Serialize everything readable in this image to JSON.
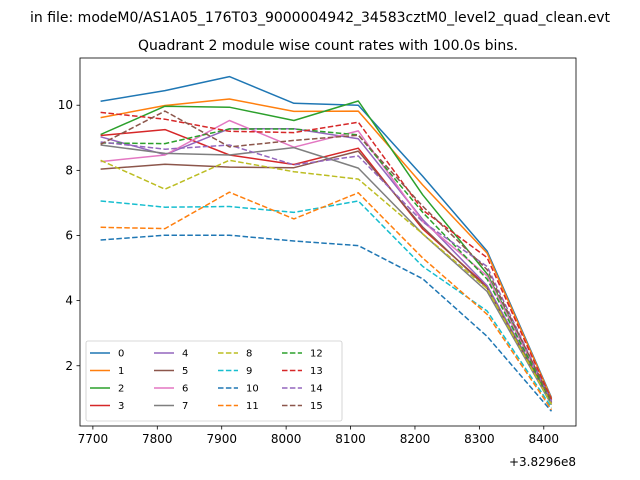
{
  "chart_data": {
    "type": "line",
    "suptitle": "in file: modeM0/AS1A05_176T03_9000004942_34583cztM0_level2_quad_clean.evt",
    "title": "Quadrant 2 module wise count rates with 100.0s bins.",
    "xlabel": "",
    "ylabel": "",
    "x_offset_label": "+3.8296e8",
    "x": [
      7712,
      7812,
      7912,
      8012,
      8112,
      8212,
      8312,
      8412
    ],
    "xlim": [
      7680,
      8450
    ],
    "ylim": [
      0.15,
      11.45
    ],
    "xticks": [
      7700,
      7800,
      7900,
      8000,
      8100,
      8200,
      8300,
      8400
    ],
    "yticks": [
      2,
      4,
      6,
      8,
      10
    ],
    "grid": false,
    "legend_position": "lower-left",
    "legend_columns": 4,
    "series": [
      {
        "name": "0",
        "color": "#1f77b4",
        "linestyle": "solid",
        "values": [
          10.12,
          10.45,
          10.88,
          10.06,
          10.0,
          7.82,
          5.52,
          1.02
        ]
      },
      {
        "name": "1",
        "color": "#ff7f0e",
        "linestyle": "solid",
        "values": [
          9.62,
          9.99,
          10.19,
          9.81,
          9.82,
          7.55,
          5.46,
          0.99
        ]
      },
      {
        "name": "2",
        "color": "#2ca02c",
        "linestyle": "solid",
        "values": [
          9.1,
          9.97,
          9.94,
          9.53,
          10.13,
          7.25,
          4.82,
          0.95
        ]
      },
      {
        "name": "3",
        "color": "#d62728",
        "linestyle": "solid",
        "values": [
          9.07,
          9.25,
          8.47,
          8.18,
          8.68,
          6.2,
          4.44,
          0.86
        ]
      },
      {
        "name": "4",
        "color": "#9467bd",
        "linestyle": "solid",
        "values": [
          9.03,
          8.48,
          9.28,
          9.28,
          8.97,
          6.49,
          4.46,
          0.9
        ]
      },
      {
        "name": "5",
        "color": "#8c564b",
        "linestyle": "solid",
        "values": [
          8.04,
          8.19,
          8.1,
          8.08,
          8.59,
          6.26,
          4.38,
          0.87
        ]
      },
      {
        "name": "6",
        "color": "#e377c2",
        "linestyle": "solid",
        "values": [
          8.27,
          8.47,
          9.53,
          8.71,
          9.21,
          6.43,
          4.76,
          0.92
        ]
      },
      {
        "name": "7",
        "color": "#7f7f7f",
        "linestyle": "solid",
        "values": [
          8.78,
          8.52,
          8.47,
          8.7,
          8.07,
          6.05,
          4.28,
          0.8
        ]
      },
      {
        "name": "8",
        "color": "#bcbd22",
        "linestyle": "dashed",
        "values": [
          8.31,
          7.42,
          8.31,
          7.96,
          7.73,
          6.05,
          4.37,
          0.82
        ]
      },
      {
        "name": "9",
        "color": "#17becf",
        "linestyle": "dashed",
        "values": [
          7.06,
          6.87,
          6.89,
          6.71,
          7.06,
          5.05,
          3.68,
          0.72
        ]
      },
      {
        "name": "10",
        "color": "#1f77b4",
        "linestyle": "dashed",
        "values": [
          5.86,
          6.01,
          6.01,
          5.83,
          5.69,
          4.67,
          2.9,
          0.6
        ]
      },
      {
        "name": "11",
        "color": "#ff7f0e",
        "linestyle": "dashed",
        "values": [
          6.25,
          6.21,
          7.33,
          6.51,
          7.31,
          5.31,
          3.58,
          0.65
        ]
      },
      {
        "name": "12",
        "color": "#2ca02c",
        "linestyle": "dashed",
        "values": [
          8.84,
          8.82,
          9.27,
          9.27,
          9.09,
          6.71,
          4.66,
          0.88
        ]
      },
      {
        "name": "13",
        "color": "#d62728",
        "linestyle": "dashed",
        "values": [
          9.78,
          9.57,
          9.2,
          9.16,
          9.48,
          6.78,
          5.32,
          0.96
        ]
      },
      {
        "name": "14",
        "color": "#9467bd",
        "linestyle": "dashed",
        "values": [
          8.87,
          8.65,
          8.78,
          8.17,
          8.44,
          6.42,
          5.05,
          0.9
        ]
      },
      {
        "name": "15",
        "color": "#8c564b",
        "linestyle": "dashed",
        "values": [
          8.8,
          9.82,
          8.72,
          8.92,
          9.08,
          6.9,
          4.95,
          0.91
        ]
      }
    ]
  }
}
